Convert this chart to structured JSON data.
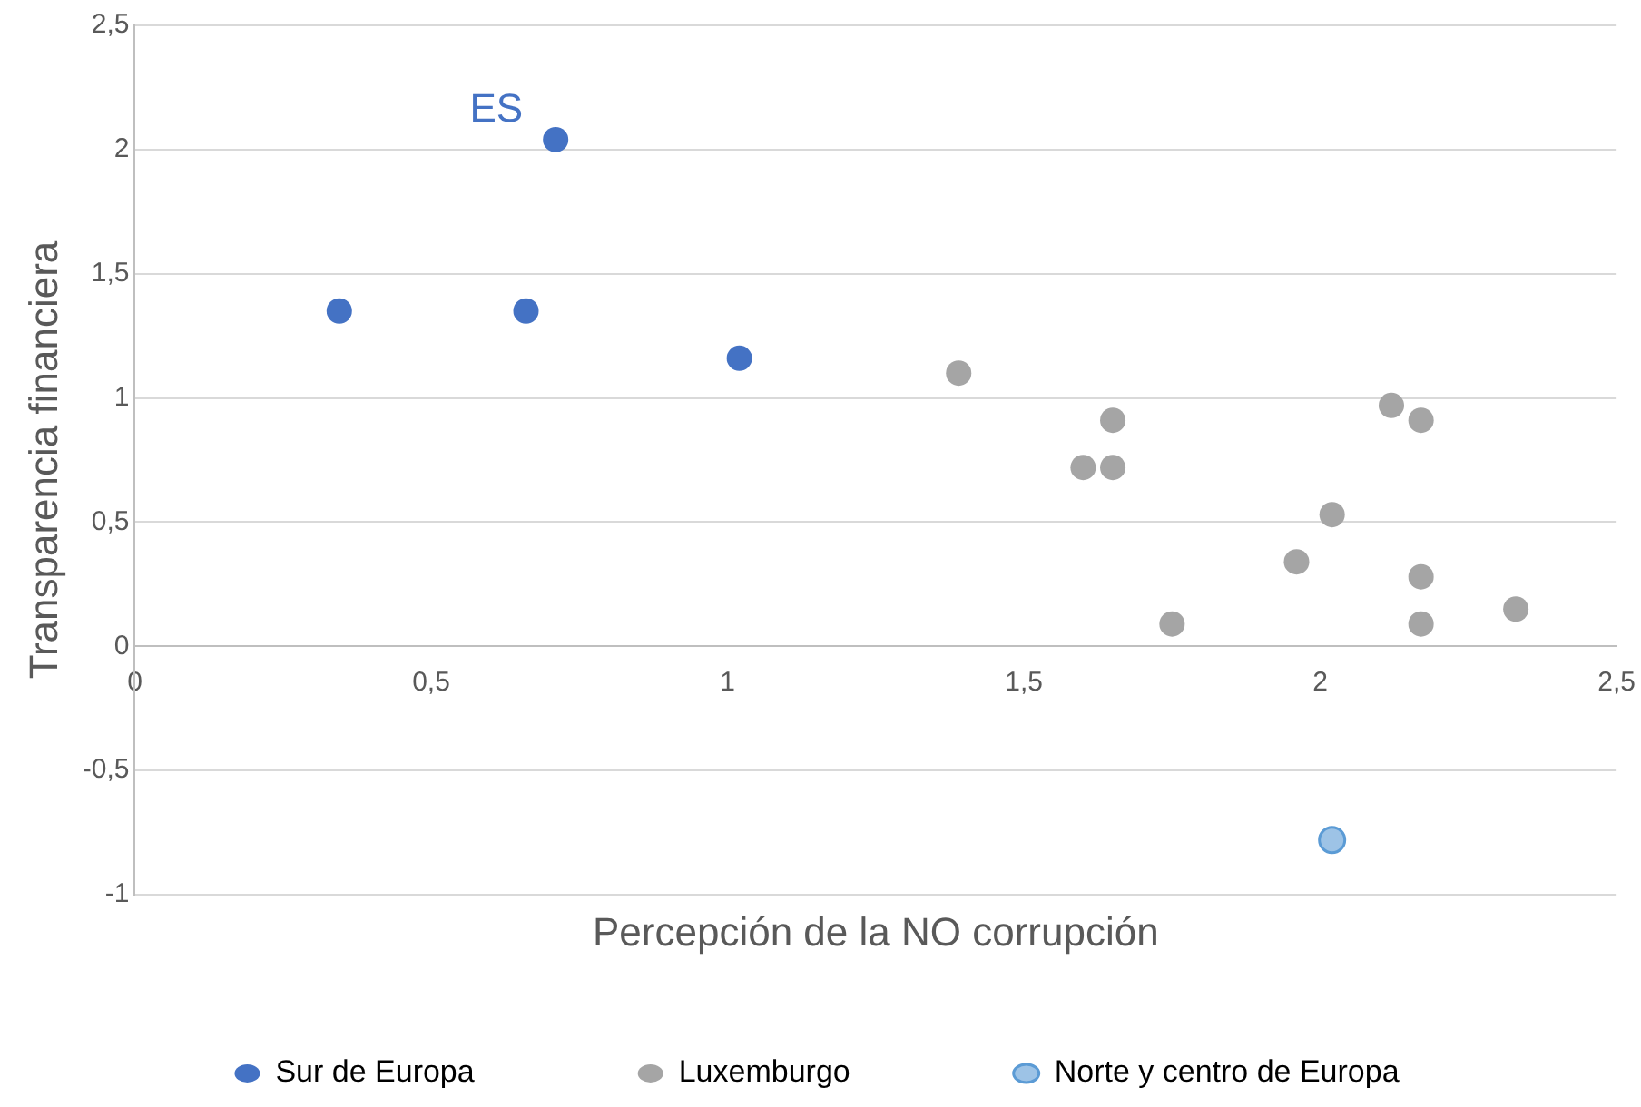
{
  "chart_data": {
    "type": "scatter",
    "xlabel": "Percepción de la NO corrupción",
    "ylabel": "Transparencia financiera",
    "series": [
      {
        "name": "Sur de Europa",
        "color": "#4472c4",
        "x": [
          0.345,
          0.66,
          0.71,
          1.02
        ],
        "values": [
          1.35,
          1.35,
          2.04,
          1.16
        ]
      },
      {
        "name": "Luxemburgo",
        "color": "#a5a5a5",
        "x": [
          1.39,
          1.6,
          1.65,
          1.65,
          1.75,
          1.96,
          2.02,
          2.12,
          2.17,
          2.17,
          2.17,
          2.33
        ],
        "values": [
          1.1,
          0.72,
          0.91,
          0.72,
          0.09,
          0.34,
          0.53,
          0.97,
          0.91,
          0.28,
          0.09,
          0.15
        ]
      },
      {
        "name": "Norte y centro de Europa",
        "color": "#9dc3e6",
        "x": [
          2.02
        ],
        "values": [
          -0.78
        ]
      }
    ],
    "annotations": [
      {
        "text": "ES",
        "x": 0.71,
        "y": 2.04
      }
    ],
    "xlim": [
      0,
      2.5
    ],
    "xticks": [
      0,
      {
        "value": 0.5,
        "label": "0,5"
      },
      1,
      {
        "value": 1.5,
        "label": "1,5"
      },
      2,
      {
        "value": 2.5,
        "label": "2,5"
      }
    ],
    "ylim": [
      -1,
      2.5
    ],
    "yticks": [
      -1,
      {
        "value": -0.5,
        "label": "-0,5"
      },
      0,
      {
        "value": 0.5,
        "label": "0,5"
      },
      1,
      {
        "value": 1.5,
        "label": "1,5"
      },
      2,
      {
        "value": 2.5,
        "label": "2,5"
      }
    ],
    "grid": "y",
    "legend": "bottom",
    "marker": "circle"
  }
}
